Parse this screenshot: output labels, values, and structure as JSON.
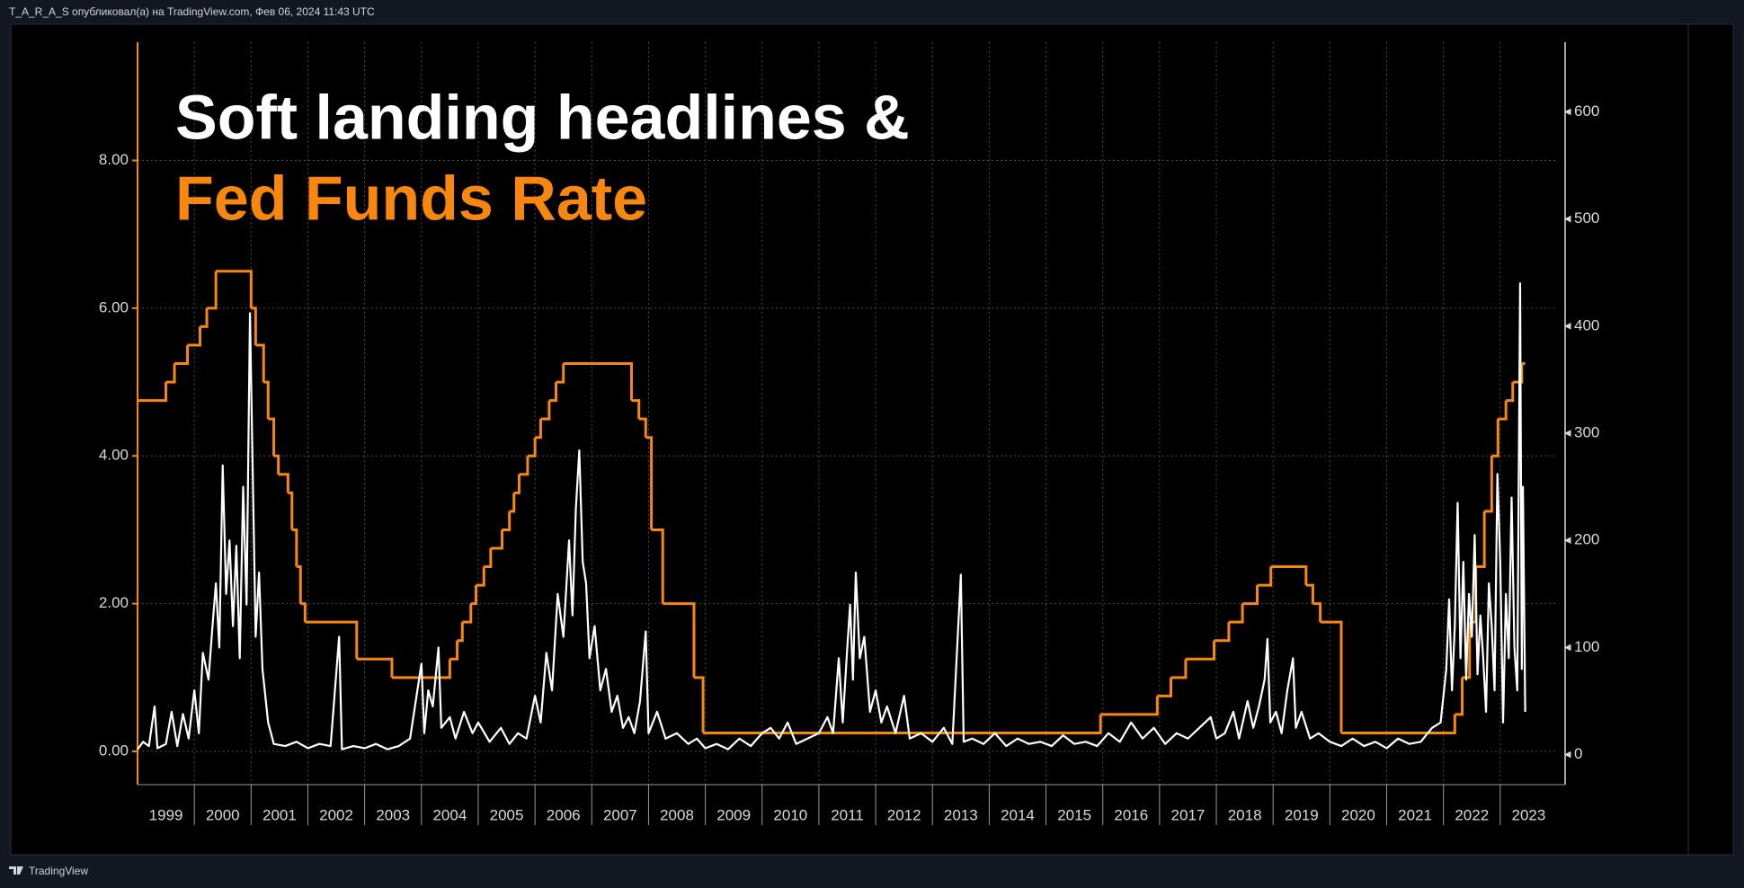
{
  "page": {
    "header": "T_A_R_A_S опубликовал(а) на TradingView.com, Фев 06, 2024 11:43 UTC",
    "footer": "TradingView"
  },
  "chart_data": {
    "type": "line",
    "title": [
      "Soft landing headlines &",
      "Fed Funds Rate"
    ],
    "xlim": [
      1999,
      2024
    ],
    "xticks": [
      {
        "value": 1999.5,
        "label": "1999"
      },
      {
        "value": 2000.5,
        "label": "2000"
      },
      {
        "value": 2001.5,
        "label": "2001"
      },
      {
        "value": 2002.5,
        "label": "2002"
      },
      {
        "value": 2003.5,
        "label": "2003"
      },
      {
        "value": 2004.5,
        "label": "2004"
      },
      {
        "value": 2005.5,
        "label": "2005"
      },
      {
        "value": 2006.5,
        "label": "2006"
      },
      {
        "value": 2007.5,
        "label": "2007"
      },
      {
        "value": 2008.5,
        "label": "2008"
      },
      {
        "value": 2009.5,
        "label": "2009"
      },
      {
        "value": 2010.5,
        "label": "2010"
      },
      {
        "value": 2011.5,
        "label": "2011"
      },
      {
        "value": 2012.5,
        "label": "2012"
      },
      {
        "value": 2013.5,
        "label": "2013"
      },
      {
        "value": 2014.5,
        "label": "2014"
      },
      {
        "value": 2015.5,
        "label": "2015"
      },
      {
        "value": 2016.5,
        "label": "2016"
      },
      {
        "value": 2017.5,
        "label": "2017"
      },
      {
        "value": 2018.5,
        "label": "2018"
      },
      {
        "value": 2019.5,
        "label": "2019"
      },
      {
        "value": 2020.5,
        "label": "2020"
      },
      {
        "value": 2021.5,
        "label": "2021"
      },
      {
        "value": 2022.5,
        "label": "2022"
      },
      {
        "value": 2023.5,
        "label": "2023"
      }
    ],
    "ylim": [
      -0.45,
      9.6
    ],
    "yticks": [
      {
        "value": 0,
        "label": "0.00"
      },
      {
        "value": 2,
        "label": "2.00"
      },
      {
        "value": 4,
        "label": "4.00"
      },
      {
        "value": 6,
        "label": "6.00"
      },
      {
        "value": 8,
        "label": "8.00"
      }
    ],
    "y2lim": [
      -28,
      665
    ],
    "y2ticks": [
      0,
      100,
      200,
      300,
      400,
      500,
      600
    ],
    "grid": true,
    "series": [
      {
        "color": "#f7870e",
        "step": true,
        "x": [
          1999.0,
          1999.5,
          1999.65,
          1999.88,
          2000.1,
          2000.22,
          2000.38,
          2001.0,
          2001.08,
          2001.22,
          2001.3,
          2001.4,
          2001.48,
          2001.65,
          2001.72,
          2001.8,
          2001.87,
          2001.95,
          2002.86,
          2003.48,
          2004.5,
          2004.63,
          2004.72,
          2004.87,
          2004.96,
          2005.1,
          2005.22,
          2005.42,
          2005.55,
          2005.63,
          2005.72,
          2005.87,
          2006.0,
          2006.1,
          2006.25,
          2006.37,
          2006.5,
          2007.7,
          2007.83,
          2007.95,
          2008.05,
          2008.25,
          2008.8,
          2008.96,
          2015.96,
          2016.96,
          2017.2,
          2017.46,
          2017.96,
          2018.22,
          2018.46,
          2018.72,
          2018.96,
          2019.58,
          2019.7,
          2019.83,
          2020.2,
          2022.2,
          2022.33,
          2022.46,
          2022.57,
          2022.72,
          2022.85,
          2022.96,
          2023.1,
          2023.22,
          2023.38,
          2023.44
        ],
        "values": [
          4.75,
          5.0,
          5.25,
          5.5,
          5.75,
          6.0,
          6.5,
          6.0,
          5.5,
          5.0,
          4.5,
          4.0,
          3.75,
          3.5,
          3.0,
          2.5,
          2.0,
          1.75,
          1.25,
          1.0,
          1.25,
          1.5,
          1.75,
          2.0,
          2.25,
          2.5,
          2.75,
          3.0,
          3.25,
          3.5,
          3.75,
          4.0,
          4.25,
          4.5,
          4.75,
          5.0,
          5.25,
          4.75,
          4.5,
          4.25,
          3.0,
          2.0,
          1.0,
          0.25,
          0.5,
          0.75,
          1.0,
          1.25,
          1.5,
          1.75,
          2.0,
          2.25,
          2.5,
          2.25,
          2.0,
          1.75,
          0.25,
          0.5,
          1.0,
          1.75,
          2.5,
          3.25,
          4.0,
          4.5,
          4.75,
          5.0,
          5.25,
          5.25
        ]
      },
      {
        "color": "#ffffff",
        "axis": "y2",
        "x": [
          1999.0,
          1999.1,
          1999.2,
          1999.3,
          1999.35,
          1999.5,
          1999.6,
          1999.7,
          1999.8,
          1999.9,
          2000.0,
          2000.08,
          2000.15,
          2000.25,
          2000.32,
          2000.38,
          2000.44,
          2000.5,
          2000.56,
          2000.62,
          2000.68,
          2000.74,
          2000.8,
          2000.86,
          2000.92,
          2000.98,
          2001.02,
          2001.08,
          2001.14,
          2001.2,
          2001.3,
          2001.4,
          2001.6,
          2001.8,
          2002.0,
          2002.2,
          2002.4,
          2002.55,
          2002.6,
          2002.8,
          2003.0,
          2003.2,
          2003.4,
          2003.6,
          2003.8,
          2004.0,
          2004.05,
          2004.12,
          2004.2,
          2004.3,
          2004.35,
          2004.5,
          2004.6,
          2004.75,
          2004.9,
          2005.0,
          2005.2,
          2005.4,
          2005.55,
          2005.7,
          2005.85,
          2006.0,
          2006.1,
          2006.2,
          2006.3,
          2006.4,
          2006.5,
          2006.6,
          2006.66,
          2006.72,
          2006.78,
          2006.84,
          2006.9,
          2006.96,
          2007.05,
          2007.15,
          2007.25,
          2007.35,
          2007.45,
          2007.55,
          2007.65,
          2007.75,
          2007.85,
          2007.95,
          2008.0,
          2008.15,
          2008.3,
          2008.5,
          2008.7,
          2008.85,
          2009.0,
          2009.2,
          2009.4,
          2009.6,
          2009.8,
          2010.0,
          2010.15,
          2010.3,
          2010.45,
          2010.6,
          2010.8,
          2011.0,
          2011.15,
          2011.25,
          2011.35,
          2011.42,
          2011.5,
          2011.55,
          2011.6,
          2011.65,
          2011.72,
          2011.8,
          2011.9,
          2012.0,
          2012.1,
          2012.2,
          2012.35,
          2012.5,
          2012.6,
          2012.8,
          2013.0,
          2013.2,
          2013.35,
          2013.5,
          2013.55,
          2013.7,
          2013.9,
          2014.1,
          2014.3,
          2014.5,
          2014.7,
          2014.9,
          2015.1,
          2015.3,
          2015.5,
          2015.7,
          2015.9,
          2016.1,
          2016.3,
          2016.5,
          2016.7,
          2016.9,
          2017.1,
          2017.3,
          2017.5,
          2017.7,
          2017.9,
          2018.0,
          2018.15,
          2018.3,
          2018.4,
          2018.55,
          2018.65,
          2018.75,
          2018.85,
          2018.9,
          2018.95,
          2019.05,
          2019.15,
          2019.25,
          2019.35,
          2019.4,
          2019.5,
          2019.65,
          2019.8,
          2020.0,
          2020.2,
          2020.4,
          2020.6,
          2020.8,
          2021.0,
          2021.2,
          2021.4,
          2021.6,
          2021.8,
          2021.95,
          2022.05,
          2022.1,
          2022.15,
          2022.2,
          2022.25,
          2022.3,
          2022.35,
          2022.4,
          2022.45,
          2022.5,
          2022.55,
          2022.6,
          2022.65,
          2022.7,
          2022.75,
          2022.8,
          2022.85,
          2022.9,
          2022.95,
          2023.0,
          2023.05,
          2023.1,
          2023.15,
          2023.2,
          2023.25,
          2023.3,
          2023.35,
          2023.38,
          2023.4,
          2023.44
        ],
        "values": [
          5,
          12,
          8,
          45,
          6,
          10,
          40,
          8,
          38,
          15,
          60,
          20,
          95,
          70,
          120,
          160,
          100,
          270,
          150,
          200,
          120,
          195,
          90,
          250,
          140,
          412,
          290,
          110,
          170,
          80,
          30,
          10,
          8,
          12,
          6,
          10,
          8,
          110,
          5,
          8,
          6,
          10,
          5,
          8,
          15,
          85,
          20,
          60,
          45,
          100,
          25,
          35,
          15,
          40,
          20,
          30,
          12,
          25,
          10,
          20,
          15,
          55,
          30,
          95,
          60,
          150,
          110,
          200,
          130,
          230,
          284,
          180,
          160,
          90,
          120,
          60,
          80,
          40,
          55,
          25,
          35,
          20,
          50,
          115,
          20,
          40,
          15,
          20,
          10,
          15,
          6,
          10,
          5,
          15,
          8,
          20,
          25,
          15,
          30,
          10,
          15,
          20,
          35,
          20,
          90,
          30,
          100,
          140,
          70,
          170,
          90,
          110,
          40,
          60,
          30,
          45,
          20,
          55,
          15,
          20,
          12,
          25,
          10,
          168,
          12,
          15,
          10,
          20,
          8,
          15,
          10,
          12,
          8,
          18,
          10,
          12,
          8,
          20,
          12,
          30,
          15,
          25,
          10,
          20,
          15,
          25,
          35,
          15,
          20,
          40,
          15,
          50,
          25,
          45,
          70,
          108,
          30,
          40,
          20,
          60,
          90,
          25,
          40,
          15,
          20,
          12,
          8,
          15,
          8,
          12,
          6,
          15,
          10,
          12,
          25,
          30,
          80,
          145,
          60,
          120,
          235,
          90,
          180,
          70,
          150,
          110,
          205,
          75,
          130,
          90,
          40,
          160,
          120,
          60,
          262,
          180,
          30,
          150,
          90,
          240,
          100,
          60,
          440,
          80,
          250,
          40
        ]
      }
    ]
  }
}
